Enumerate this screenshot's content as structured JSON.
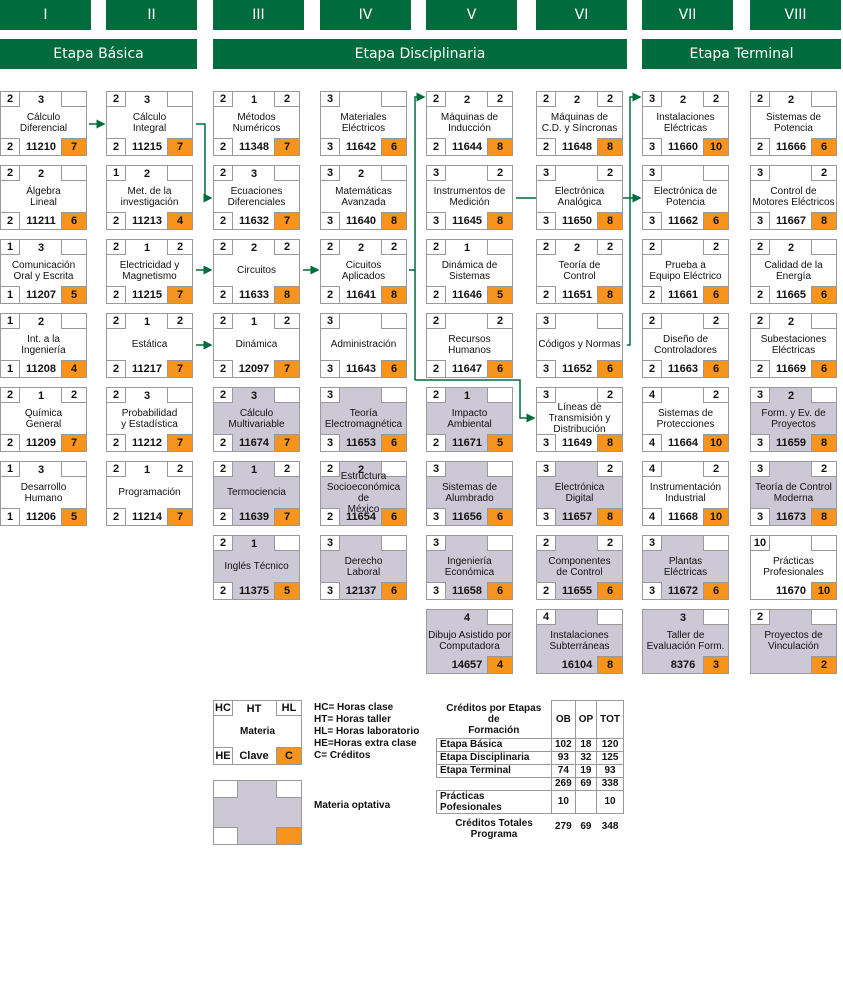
{
  "semesters": [
    "I",
    "II",
    "III",
    "IV",
    "V",
    "VI",
    "VII",
    "VIII"
  ],
  "stages": [
    "Etapa Básica",
    "Etapa Disciplinaria",
    "Etapa Terminal"
  ],
  "courses": [
    {
      "name": "Cálculo\nDiferencial",
      "hc": "2",
      "ht": "3",
      "hl": "",
      "he": "2",
      "clave": "11210",
      "cr": "7",
      "opt": false
    },
    {
      "name": "Álgebra\nLineal",
      "hc": "2",
      "ht": "2",
      "hl": "",
      "he": "2",
      "clave": "11211",
      "cr": "6",
      "opt": false
    },
    {
      "name": "Comunicación\nOral y Escrita",
      "hc": "1",
      "ht": "3",
      "hl": "",
      "he": "1",
      "clave": "11207",
      "cr": "5",
      "opt": false
    },
    {
      "name": "Int. a la\nIngeniería",
      "hc": "1",
      "ht": "2",
      "hl": "",
      "he": "1",
      "clave": "11208",
      "cr": "4",
      "opt": false
    },
    {
      "name": "Química\nGeneral",
      "hc": "2",
      "ht": "1",
      "hl": "2",
      "he": "2",
      "clave": "11209",
      "cr": "7",
      "opt": false
    },
    {
      "name": "Desarrollo\nHumano",
      "hc": "1",
      "ht": "3",
      "hl": "",
      "he": "1",
      "clave": "11206",
      "cr": "5",
      "opt": false
    },
    {
      "name": "Cálculo\nIntegral",
      "hc": "2",
      "ht": "3",
      "hl": "",
      "he": "2",
      "clave": "11215",
      "cr": "7",
      "opt": false
    },
    {
      "name": "Met. de la\ninvestigación",
      "hc": "1",
      "ht": "2",
      "hl": "",
      "he": "2",
      "clave": "11213",
      "cr": "4",
      "opt": false
    },
    {
      "name": "Electricidad y\nMagnetismo",
      "hc": "2",
      "ht": "1",
      "hl": "2",
      "he": "2",
      "clave": "11215",
      "cr": "7",
      "opt": false
    },
    {
      "name": "Estática",
      "hc": "2",
      "ht": "1",
      "hl": "2",
      "he": "2",
      "clave": "11217",
      "cr": "7",
      "opt": false
    },
    {
      "name": "Probabilidad\ny Estadística",
      "hc": "2",
      "ht": "3",
      "hl": "",
      "he": "2",
      "clave": "11212",
      "cr": "7",
      "opt": false
    },
    {
      "name": "Programación",
      "hc": "2",
      "ht": "1",
      "hl": "2",
      "he": "2",
      "clave": "11214",
      "cr": "7",
      "opt": false
    },
    {
      "name": "Métodos\nNuméricos",
      "hc": "2",
      "ht": "1",
      "hl": "2",
      "he": "2",
      "clave": "11348",
      "cr": "7",
      "opt": false
    },
    {
      "name": "Ecuaciones\nDiferenciales",
      "hc": "2",
      "ht": "3",
      "hl": "",
      "he": "2",
      "clave": "11632",
      "cr": "7",
      "opt": false
    },
    {
      "name": "Circuitos",
      "hc": "2",
      "ht": "2",
      "hl": "2",
      "he": "2",
      "clave": "11633",
      "cr": "8",
      "opt": false
    },
    {
      "name": "Dinámica",
      "hc": "2",
      "ht": "1",
      "hl": "2",
      "he": "2",
      "clave": "12097",
      "cr": "7",
      "opt": false
    },
    {
      "name": "Cálculo\nMultivariable",
      "hc": "2",
      "ht": "3",
      "hl": "",
      "he": "2",
      "clave": "11674",
      "cr": "7",
      "opt": true
    },
    {
      "name": "Termociencia",
      "hc": "2",
      "ht": "1",
      "hl": "2",
      "he": "2",
      "clave": "11639",
      "cr": "7",
      "opt": true
    },
    {
      "name": "Inglés Técnico",
      "hc": "2",
      "ht": "1",
      "hl": "",
      "he": "2",
      "clave": "11375",
      "cr": "5",
      "opt": true
    },
    {
      "name": "Materiales\nEléctricos",
      "hc": "3",
      "ht": "",
      "hl": "",
      "he": "3",
      "clave": "11642",
      "cr": "6",
      "opt": false
    },
    {
      "name": "Matemáticas\nAvanzada",
      "hc": "3",
      "ht": "2",
      "hl": "",
      "he": "3",
      "clave": "11640",
      "cr": "8",
      "opt": false
    },
    {
      "name": "Cicuitos\nAplicados",
      "hc": "2",
      "ht": "2",
      "hl": "2",
      "he": "2",
      "clave": "11641",
      "cr": "8",
      "opt": false
    },
    {
      "name": "Administración",
      "hc": "3",
      "ht": "",
      "hl": "",
      "he": "3",
      "clave": "11643",
      "cr": "6",
      "opt": false
    },
    {
      "name": "Teoría\nElectromagnética",
      "hc": "3",
      "ht": "",
      "hl": "",
      "he": "3",
      "clave": "11653",
      "cr": "6",
      "opt": true
    },
    {
      "name": "Estructura\nSocioeconómica de\nMéxico",
      "hc": "2",
      "ht": "2",
      "hl": "",
      "he": "2",
      "clave": "11654",
      "cr": "6",
      "opt": true
    },
    {
      "name": "Derecho\nLaboral",
      "hc": "3",
      "ht": "",
      "hl": "",
      "he": "3",
      "clave": "12137",
      "cr": "6",
      "opt": true
    },
    {
      "name": "Máquinas de\nInducción",
      "hc": "2",
      "ht": "2",
      "hl": "2",
      "he": "2",
      "clave": "11644",
      "cr": "8",
      "opt": false
    },
    {
      "name": "Instrumentos de\nMedición",
      "hc": "3",
      "ht": "",
      "hl": "2",
      "he": "3",
      "clave": "11645",
      "cr": "8",
      "opt": false
    },
    {
      "name": "Dinámica de\nSistemas",
      "hc": "2",
      "ht": "1",
      "hl": "",
      "he": "2",
      "clave": "11646",
      "cr": "5",
      "opt": false
    },
    {
      "name": "Recursos\nHumanos",
      "hc": "2",
      "ht": "",
      "hl": "2",
      "he": "2",
      "clave": "11647",
      "cr": "6",
      "opt": false
    },
    {
      "name": "Impacto\nAmbiental",
      "hc": "2",
      "ht": "1",
      "hl": "",
      "he": "2",
      "clave": "11671",
      "cr": "5",
      "opt": true
    },
    {
      "name": "Sistemas de\nAlumbrado",
      "hc": "3",
      "ht": "",
      "hl": "",
      "he": "3",
      "clave": "11656",
      "cr": "6",
      "opt": true
    },
    {
      "name": "Ingeniería\nEconómica",
      "hc": "3",
      "ht": "",
      "hl": "",
      "he": "3",
      "clave": "11658",
      "cr": "6",
      "opt": true
    },
    {
      "name": "Dibujo Asistido por\nComputadora",
      "hc": "",
      "ht": "4",
      "hl": "",
      "he": "",
      "clave": "14657",
      "cr": "4",
      "opt": true
    },
    {
      "name": "Máquinas de\nC.D. y Síncronas",
      "hc": "2",
      "ht": "2",
      "hl": "2",
      "he": "2",
      "clave": "11648",
      "cr": "8",
      "opt": false
    },
    {
      "name": "Electrónica\nAnalógica",
      "hc": "3",
      "ht": "",
      "hl": "2",
      "he": "3",
      "clave": "11650",
      "cr": "8",
      "opt": false
    },
    {
      "name": "Teoría de\nControl",
      "hc": "2",
      "ht": "2",
      "hl": "2",
      "he": "2",
      "clave": "11651",
      "cr": "8",
      "opt": false
    },
    {
      "name": "Códigos y Normas",
      "hc": "3",
      "ht": "",
      "hl": "",
      "he": "3",
      "clave": "11652",
      "cr": "6",
      "opt": false
    },
    {
      "name": "Líneas de\nTransmisión y\nDistribución",
      "hc": "3",
      "ht": "",
      "hl": "2",
      "he": "3",
      "clave": "11649",
      "cr": "8",
      "opt": false
    },
    {
      "name": "Electrónica\nDigital",
      "hc": "3",
      "ht": "",
      "hl": "2",
      "he": "3",
      "clave": "11657",
      "cr": "8",
      "opt": true
    },
    {
      "name": "Componentes\nde Control",
      "hc": "2",
      "ht": "",
      "hl": "2",
      "he": "2",
      "clave": "11655",
      "cr": "6",
      "opt": true
    },
    {
      "name": "Instalaciones\nSubterráneas",
      "hc": "4",
      "ht": "",
      "hl": "",
      "he": "",
      "clave": "16104",
      "cr": "8",
      "opt": true
    },
    {
      "name": "Instalaciones\nEléctricas",
      "hc": "3",
      "ht": "2",
      "hl": "2",
      "he": "3",
      "clave": "11660",
      "cr": "10",
      "opt": false
    },
    {
      "name": "Electrónica de\nPotencia",
      "hc": "3",
      "ht": "",
      "hl": "",
      "he": "3",
      "clave": "11662",
      "cr": "6",
      "opt": false
    },
    {
      "name": "Prueba a\nEquipo Eléctrico",
      "hc": "2",
      "ht": "",
      "hl": "2",
      "he": "2",
      "clave": "11661",
      "cr": "6",
      "opt": false
    },
    {
      "name": "Diseño de\nControladores",
      "hc": "2",
      "ht": "",
      "hl": "2",
      "he": "2",
      "clave": "11663",
      "cr": "6",
      "opt": false
    },
    {
      "name": "Sistemas de\nProtecciones",
      "hc": "4",
      "ht": "",
      "hl": "2",
      "he": "4",
      "clave": "11664",
      "cr": "10",
      "opt": false
    },
    {
      "name": "Instrumentación\nIndustrial",
      "hc": "4",
      "ht": "",
      "hl": "2",
      "he": "4",
      "clave": "11668",
      "cr": "10",
      "opt": false
    },
    {
      "name": "Plantas\nEléctricas",
      "hc": "3",
      "ht": "",
      "hl": "",
      "he": "3",
      "clave": "11672",
      "cr": "6",
      "opt": true
    },
    {
      "name": "Taller de\nEvaluación Form.",
      "hc": "",
      "ht": "3",
      "hl": "",
      "he": "",
      "clave": "8376",
      "cr": "3",
      "opt": true
    },
    {
      "name": "Sistemas de\nPotencia",
      "hc": "2",
      "ht": "2",
      "hl": "",
      "he": "2",
      "clave": "11666",
      "cr": "6",
      "opt": false
    },
    {
      "name": "Control de\nMotores Eléctricos",
      "hc": "3",
      "ht": "",
      "hl": "2",
      "he": "3",
      "clave": "11667",
      "cr": "8",
      "opt": false
    },
    {
      "name": "Calidad de la\nEnergía",
      "hc": "2",
      "ht": "2",
      "hl": "",
      "he": "2",
      "clave": "11665",
      "cr": "6",
      "opt": false
    },
    {
      "name": "Subestaciones\nEléctricas",
      "hc": "2",
      "ht": "2",
      "hl": "",
      "he": "2",
      "clave": "11669",
      "cr": "6",
      "opt": false
    },
    {
      "name": "Form. y Ev. de\nProyectos",
      "hc": "3",
      "ht": "2",
      "hl": "",
      "he": "3",
      "clave": "11659",
      "cr": "8",
      "opt": true
    },
    {
      "name": "Teoría de Control\nModerna",
      "hc": "3",
      "ht": "",
      "hl": "2",
      "he": "3",
      "clave": "11673",
      "cr": "8",
      "opt": true
    },
    {
      "name": "Prácticas\nProfesionales",
      "hc": "10",
      "ht": "",
      "hl": "",
      "he": "",
      "clave": "11670",
      "cr": "10",
      "opt": false
    },
    {
      "name": "Proyectos de\nVinculación",
      "hc": "2",
      "ht": "",
      "hl": "",
      "he": "",
      "clave": "",
      "cr": "2",
      "opt": true
    }
  ],
  "legend": {
    "hc": "HC",
    "ht": "HT",
    "hl": "HL",
    "materia": "Materia",
    "he": "HE",
    "clave": "Clave",
    "c": "C",
    "defs": [
      "HC= Horas clase",
      "HT= Horas taller",
      "HL= Horas laboratorio",
      "HE=Horas extra clase",
      "C= Créditos"
    ],
    "optativa": "Materia optativa"
  },
  "credits": {
    "title": "Créditos por Etapas de\nFormación",
    "cols": [
      "OB",
      "OP",
      "TOT"
    ],
    "rows": [
      {
        "label": "Etapa Básica",
        "ob": "102",
        "op": "18",
        "tot": "120"
      },
      {
        "label": "Etapa Disciplinaria",
        "ob": "93",
        "op": "32",
        "tot": "125"
      },
      {
        "label": "Etapa Terminal",
        "ob": "74",
        "op": "19",
        "tot": "93"
      }
    ],
    "sum": {
      "ob": "269",
      "op": "69",
      "tot": "338"
    },
    "practicas": {
      "label": "Prácticas Pofesionales",
      "ob": "10",
      "op": "",
      "tot": "10"
    },
    "total": {
      "label": "Créditos Totales\nPrograma",
      "ob": "279",
      "op": "69",
      "tot": "348"
    }
  }
}
